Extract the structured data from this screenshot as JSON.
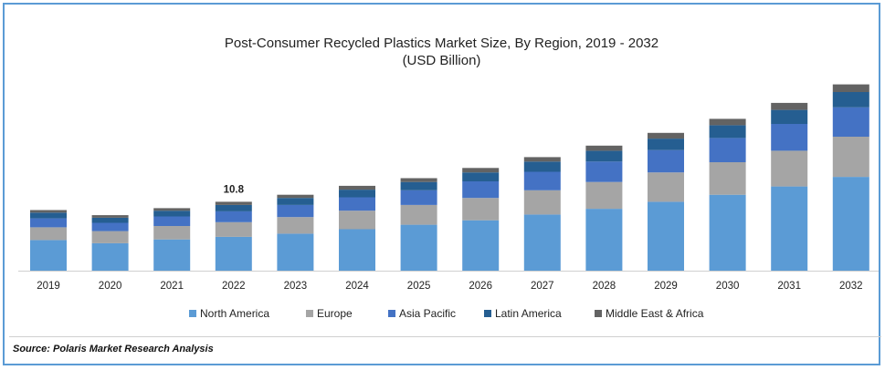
{
  "title_line1": "Post-Consumer Recycled Plastics Market Size, By Region, 2019 - 2032",
  "title_line2": "(USD Billion)",
  "source": "Source: Polaris Market Research Analysis",
  "colors": {
    "North America": "#5b9bd5",
    "Europe": "#a5a5a5",
    "Asia Pacific": "#4472c4",
    "Latin America": "#255e91",
    "Middle East & Africa": "#636363"
  },
  "chart_data": {
    "type": "bar",
    "stacked": true,
    "title": "Post-Consumer Recycled Plastics Market Size, By Region, 2019 - 2032",
    "subtitle": "(USD Billion)",
    "categories": [
      "2019",
      "2020",
      "2021",
      "2022",
      "2023",
      "2024",
      "2025",
      "2026",
      "2027",
      "2028",
      "2029",
      "2030",
      "2031",
      "2032"
    ],
    "series": [
      {
        "name": "North America",
        "values": [
          4.8,
          4.3,
          4.9,
          5.3,
          5.8,
          6.5,
          7.2,
          7.9,
          8.8,
          9.7,
          10.8,
          11.9,
          13.2,
          14.7
        ]
      },
      {
        "name": "Europe",
        "values": [
          2.0,
          1.9,
          2.1,
          2.3,
          2.6,
          2.9,
          3.1,
          3.5,
          3.8,
          4.2,
          4.6,
          5.1,
          5.6,
          6.3
        ]
      },
      {
        "name": "Asia Pacific",
        "values": [
          1.4,
          1.3,
          1.5,
          1.7,
          1.9,
          2.1,
          2.3,
          2.6,
          2.9,
          3.2,
          3.5,
          3.8,
          4.2,
          4.6
        ]
      },
      {
        "name": "Latin America",
        "values": [
          0.9,
          0.8,
          0.9,
          1.0,
          1.1,
          1.2,
          1.3,
          1.4,
          1.6,
          1.7,
          1.8,
          2.0,
          2.2,
          2.4
        ]
      },
      {
        "name": "Middle East & Africa",
        "values": [
          0.4,
          0.4,
          0.4,
          0.5,
          0.5,
          0.6,
          0.6,
          0.7,
          0.7,
          0.8,
          0.9,
          1.0,
          1.1,
          1.2
        ]
      }
    ],
    "data_labels": [
      {
        "category": "2022",
        "text": "10.8"
      }
    ],
    "ylim": [
      0,
      31
    ],
    "legend": "bottom",
    "grid": false
  }
}
